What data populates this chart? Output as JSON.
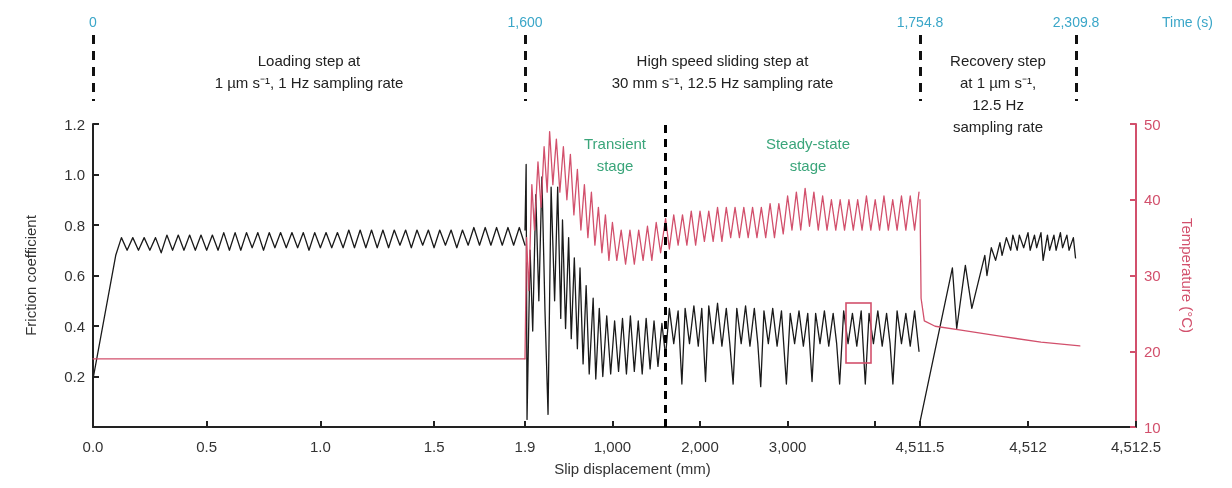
{
  "chart_data": [
    {
      "type": "line",
      "ylabel": "Friction coefficient",
      "ylim": [
        0,
        1.2
      ],
      "yticks": [
        {
          "value": 0.2,
          "label": "0.2"
        },
        {
          "value": 0.4,
          "label": "0.4"
        },
        {
          "value": 0.6,
          "label": "0.6"
        },
        {
          "value": 0.8,
          "label": "0.8"
        },
        {
          "value": 1.0,
          "label": "1.0"
        },
        {
          "value": 1.2,
          "label": "1.2"
        }
      ],
      "y2lim": [
        10,
        50
      ],
      "xlim": [
        0,
        1.9
      ],
      "xticks": [
        {
          "value": 0,
          "label": "0.0"
        },
        0.5,
        {
          "value": 1.0,
          "label": "1.0"
        },
        1.5,
        1.9
      ],
      "x2lim": [
        0,
        1600
      ],
      "x2ticks": [
        0,
        {
          "value": 1600,
          "label": "1,600"
        }
      ],
      "tick_labels": [
        "x",
        "y",
        "x2"
      ],
      "annotations": [
        "Loading step at\n1 µm s⁻¹, 1 Hz sampling rate"
      ],
      "series": [
        {
          "color": "#1a1a1a",
          "x": [
            0,
            0.1,
            0.125,
            0.15,
            0.175,
            0.2,
            0.225,
            0.25,
            0.275,
            0.3,
            0.325,
            0.35,
            0.375,
            0.4,
            0.425,
            0.45,
            0.475,
            0.5,
            0.525,
            0.55,
            0.575,
            0.6,
            0.625,
            0.65,
            0.675,
            0.7,
            0.725,
            0.75,
            0.775,
            0.8,
            0.825,
            0.85,
            0.875,
            0.9,
            0.925,
            0.95,
            0.975,
            1.0,
            1.025,
            1.05,
            1.075,
            1.1,
            1.125,
            1.15,
            1.175,
            1.2,
            1.225,
            1.25,
            1.275,
            1.3,
            1.325,
            1.35,
            1.375,
            1.4,
            1.425,
            1.45,
            1.475,
            1.5,
            1.525,
            1.55,
            1.575,
            1.6,
            1.625,
            1.65,
            1.675,
            1.7,
            1.725,
            1.75,
            1.775,
            1.8,
            1.825,
            1.85,
            1.875,
            1.9
          ],
          "values": [
            0.19,
            0.68,
            0.75,
            0.7,
            0.75,
            0.7,
            0.75,
            0.7,
            0.75,
            0.69,
            0.76,
            0.7,
            0.76,
            0.7,
            0.76,
            0.7,
            0.76,
            0.7,
            0.76,
            0.7,
            0.77,
            0.7,
            0.77,
            0.7,
            0.77,
            0.71,
            0.77,
            0.7,
            0.77,
            0.71,
            0.77,
            0.71,
            0.77,
            0.71,
            0.77,
            0.7,
            0.77,
            0.71,
            0.77,
            0.71,
            0.77,
            0.71,
            0.78,
            0.71,
            0.78,
            0.71,
            0.78,
            0.71,
            0.78,
            0.71,
            0.78,
            0.72,
            0.78,
            0.71,
            0.78,
            0.72,
            0.78,
            0.71,
            0.78,
            0.72,
            0.78,
            0.71,
            0.78,
            0.72,
            0.79,
            0.72,
            0.79,
            0.72,
            0.79,
            0.72,
            0.79,
            0.72,
            0.79,
            0.72
          ]
        },
        {
          "color": "#d2506c",
          "axis": "y2",
          "x": [
            0,
            1.9
          ],
          "values": [
            19,
            19
          ]
        }
      ]
    },
    {
      "type": "line",
      "xlabel": "Slip displacement (mm)",
      "ylim": [
        0,
        1.2
      ],
      "y2lim": [
        10,
        50
      ],
      "xlim": [
        1.9,
        4511.5
      ],
      "xticks": [
        {
          "value": 1.9,
          "label": null
        },
        {
          "value": 1000,
          "label": "1,000"
        },
        {
          "value": 2000,
          "label": "2,000"
        },
        {
          "value": 3000,
          "label": "3,000"
        },
        {
          "value": 4000,
          "label": null
        },
        {
          "value": 4511.5,
          "label": null
        }
      ],
      "tick_labels": [
        "x"
      ],
      "annotations": [
        "High speed sliding step at\n30 mm s⁻¹, 12.5 Hz sampling rate",
        "Transient\nstage",
        "Steady-state\nstage"
      ],
      "ref_lines": [
        {
          "axis": "x",
          "value": 1607,
          "color": "#000000",
          "line_style": "dashed"
        }
      ],
      "series": [
        {
          "color": "#1a1a1a",
          "x": [
            1.9,
            15,
            25,
            60,
            90,
            125,
            160,
            195,
            230,
            265,
            300,
            340,
            375,
            410,
            430,
            465,
            500,
            530,
            565,
            600,
            630,
            665,
            700,
            735,
            780,
            810,
            850,
            890,
            935,
            980,
            1025,
            1070,
            1115,
            1160,
            1205,
            1250,
            1295,
            1340,
            1385,
            1430,
            1475,
            1520,
            1565,
            1607,
            1650,
            1700,
            1750,
            1793,
            1830,
            1880,
            1930,
            1980,
            2020,
            2063,
            2100,
            2150,
            2200,
            2250,
            2300,
            2340,
            2378,
            2420,
            2470,
            2520,
            2570,
            2620,
            2660,
            2693,
            2730,
            2780,
            2830,
            2880,
            2930,
            2986,
            3030,
            3080,
            3130,
            3180,
            3230,
            3279,
            3320,
            3370,
            3420,
            3470,
            3520,
            3560,
            3594,
            3640,
            3690,
            3740,
            3790,
            3840,
            3887,
            3930,
            3980,
            4030,
            4080,
            4130,
            4170,
            4202,
            4250,
            4300,
            4350,
            4400,
            4450,
            4500
          ],
          "values": [
            0.78,
            1.04,
            0.03,
            0.7,
            0.38,
            0.92,
            0.5,
            0.99,
            0.46,
            0.05,
            0.95,
            0.5,
            0.95,
            0.43,
            0.82,
            0.39,
            0.75,
            0.35,
            0.67,
            0.31,
            0.63,
            0.25,
            0.56,
            0.21,
            0.51,
            0.19,
            0.47,
            0.2,
            0.44,
            0.21,
            0.42,
            0.22,
            0.43,
            0.21,
            0.44,
            0.22,
            0.42,
            0.21,
            0.43,
            0.23,
            0.42,
            0.24,
            0.41,
            0.28,
            0.47,
            0.33,
            0.46,
            0.17,
            0.47,
            0.33,
            0.48,
            0.32,
            0.47,
            0.18,
            0.48,
            0.33,
            0.49,
            0.32,
            0.47,
            0.33,
            0.17,
            0.47,
            0.33,
            0.48,
            0.32,
            0.47,
            0.33,
            0.16,
            0.46,
            0.33,
            0.47,
            0.32,
            0.46,
            0.17,
            0.45,
            0.33,
            0.46,
            0.32,
            0.45,
            0.18,
            0.45,
            0.33,
            0.46,
            0.32,
            0.45,
            0.33,
            0.17,
            0.46,
            0.33,
            0.45,
            0.32,
            0.46,
            0.17,
            0.45,
            0.33,
            0.46,
            0.32,
            0.45,
            0.33,
            0.17,
            0.46,
            0.33,
            0.45,
            0.32,
            0.46,
            0.3
          ]
        },
        {
          "color": "#d2506c",
          "axis": "y2",
          "x": [
            1.9,
            20,
            45,
            80,
            110,
            150,
            185,
            220,
            255,
            283,
            320,
            360,
            400,
            440,
            480,
            520,
            560,
            600,
            640,
            680,
            720,
            760,
            800,
            840,
            880,
            920,
            960,
            1000,
            1050,
            1100,
            1150,
            1200,
            1250,
            1300,
            1350,
            1400,
            1450,
            1500,
            1550,
            1607,
            1650,
            1700,
            1750,
            1800,
            1850,
            1900,
            1950,
            2000,
            2050,
            2100,
            2150,
            2200,
            2250,
            2300,
            2350,
            2400,
            2450,
            2500,
            2550,
            2600,
            2650,
            2700,
            2750,
            2800,
            2850,
            2900,
            2950,
            3000,
            3050,
            3100,
            3150,
            3200,
            3250,
            3300,
            3350,
            3400,
            3450,
            3500,
            3550,
            3600,
            3650,
            3700,
            3750,
            3800,
            3850,
            3900,
            3950,
            4000,
            4050,
            4100,
            4150,
            4200,
            4250,
            4300,
            4350,
            4400,
            4450,
            4500
          ],
          "values": [
            19,
            35,
            28,
            42,
            36,
            45,
            39,
            47,
            41,
            49,
            42,
            48,
            41,
            47,
            40,
            46,
            38,
            44,
            36,
            42,
            35,
            41,
            34,
            39,
            33,
            38,
            32,
            37,
            32,
            36,
            31.5,
            36,
            31.5,
            36,
            32,
            36.5,
            32,
            37,
            33,
            37.5,
            33.5,
            38,
            34,
            38,
            34,
            38.5,
            34,
            38.5,
            34.5,
            38.5,
            34.5,
            39,
            34.5,
            39,
            35,
            39,
            35,
            39,
            35,
            39,
            35,
            39,
            35,
            39.5,
            35,
            39.5,
            35.5,
            40.5,
            36,
            41,
            36,
            41.5,
            36.5,
            41,
            36,
            40.5,
            36,
            40,
            36,
            40,
            36,
            40,
            36,
            40,
            36,
            40.5,
            36,
            40,
            36,
            40.5,
            36,
            40,
            36,
            40.5,
            36,
            40.5,
            36,
            41
          ]
        }
      ]
    },
    {
      "type": "line",
      "y2label": "Temperature (°C)",
      "x2label": "Time (s)",
      "ylim": [
        0,
        1.2
      ],
      "y2lim": [
        10,
        50
      ],
      "y2ticks": [
        10,
        20,
        30,
        40,
        50
      ],
      "xlim": [
        4511.5,
        4512.5
      ],
      "xticks": [
        {
          "value": 4511.5,
          "label": "4,511.5"
        },
        {
          "value": 4512,
          "label": "4,512"
        },
        {
          "value": 4512.5,
          "label": "4,512.5"
        }
      ],
      "x2lim": [
        1754.8,
        2523
      ],
      "x2ticks": [
        {
          "value": 1754.8,
          "label": "1,754.8"
        },
        {
          "value": 2309.8,
          "label": "2,309.8"
        }
      ],
      "tick_labels": [
        "x",
        "y2",
        "x2"
      ],
      "annotations": [
        "Recovery step\nat 1 µm s⁻¹,\n12.5 Hz\nsampling rate"
      ],
      "series": [
        {
          "color": "#1a1a1a",
          "x": [
            4511.5,
            4511.65,
            4511.67,
            4511.71,
            4511.74,
            4511.8,
            4511.81,
            4511.83,
            4511.85,
            4511.87,
            4511.88,
            4511.9,
            4511.92,
            4511.93,
            4511.95,
            4511.96,
            4511.98,
            4512.0,
            4512.01,
            4512.03,
            4512.04,
            4512.06,
            4512.07,
            4512.09,
            4512.1,
            4512.12,
            4512.13,
            4512.15,
            4512.16,
            4512.18,
            4512.19,
            4512.21,
            4512.22
          ],
          "values": [
            0.02,
            0.63,
            0.39,
            0.64,
            0.47,
            0.68,
            0.6,
            0.71,
            0.66,
            0.73,
            0.68,
            0.75,
            0.7,
            0.76,
            0.7,
            0.76,
            0.71,
            0.77,
            0.7,
            0.76,
            0.71,
            0.77,
            0.66,
            0.76,
            0.7,
            0.76,
            0.7,
            0.77,
            0.71,
            0.76,
            0.7,
            0.75,
            0.67
          ]
        },
        {
          "color": "#d2506c",
          "axis": "y2",
          "x": [
            4511.5,
            4511.505,
            4511.52,
            4511.57,
            4511.69,
            4511.87,
            4512.06,
            4512.24
          ],
          "values": [
            40,
            27,
            24,
            23.3,
            22.8,
            22,
            21.2,
            20.7
          ]
        }
      ]
    }
  ]
}
